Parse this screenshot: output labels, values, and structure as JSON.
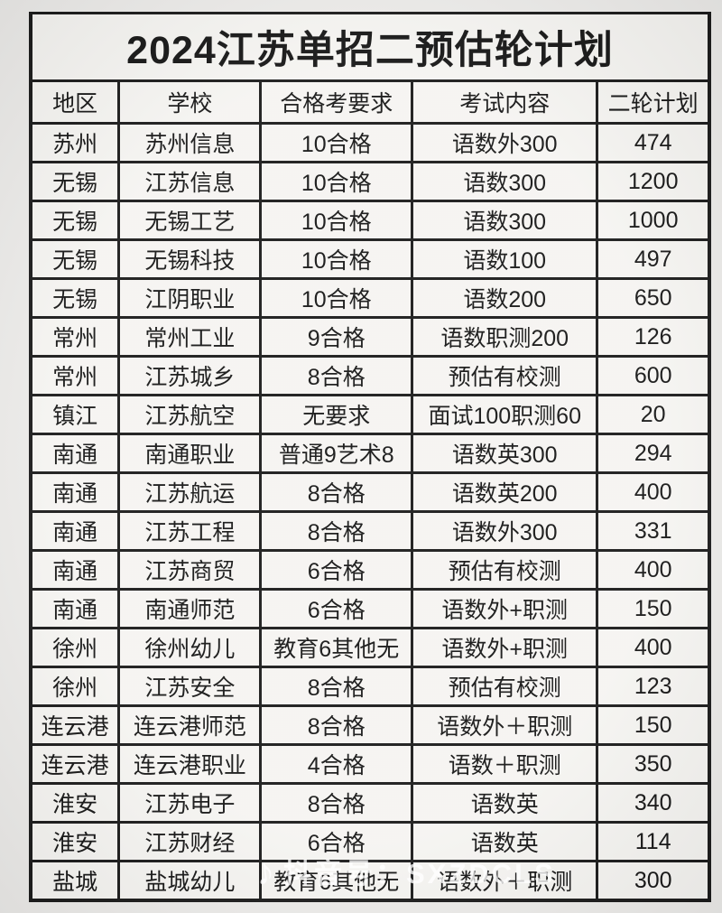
{
  "title": "2024江苏单招二预估轮计划",
  "table": {
    "headers": [
      "地区",
      "学校",
      "合格考要求",
      "考试内容",
      "二轮计划"
    ],
    "rows": [
      [
        "苏州",
        "苏州信息",
        "10合格",
        "语数外300",
        "474"
      ],
      [
        "无锡",
        "江苏信息",
        "10合格",
        "语数300",
        "1200"
      ],
      [
        "无锡",
        "无锡工艺",
        "10合格",
        "语数300",
        "1000"
      ],
      [
        "无锡",
        "无锡科技",
        "10合格",
        "语数100",
        "497"
      ],
      [
        "无锡",
        "江阴职业",
        "10合格",
        "语数200",
        "650"
      ],
      [
        "常州",
        "常州工业",
        "9合格",
        "语数职测200",
        "126"
      ],
      [
        "常州",
        "江苏城乡",
        "8合格",
        "预估有校测",
        "600"
      ],
      [
        "镇江",
        "江苏航空",
        "无要求",
        "面试100职测60",
        "20"
      ],
      [
        "南通",
        "南通职业",
        "普通9艺术8",
        "语数英300",
        "294"
      ],
      [
        "南通",
        "江苏航运",
        "8合格",
        "语数英200",
        "400"
      ],
      [
        "南通",
        "江苏工程",
        "8合格",
        "语数外300",
        "331"
      ],
      [
        "南通",
        "江苏商贸",
        "6合格",
        "预估有校测",
        "400"
      ],
      [
        "南通",
        "南通师范",
        "6合格",
        "语数外+职测",
        "150"
      ],
      [
        "徐州",
        "徐州幼儿",
        "教育6其他无",
        "语数外+职测",
        "400"
      ],
      [
        "徐州",
        "江苏安全",
        "8合格",
        "预估有校测",
        "123"
      ],
      [
        "连云港",
        "连云港师范",
        "8合格",
        "语数外＋职测",
        "150"
      ],
      [
        "连云港",
        "连云港职业",
        "4合格",
        "语数＋职测",
        "350"
      ],
      [
        "淮安",
        "江苏电子",
        "8合格",
        "语数英",
        "340"
      ],
      [
        "淮安",
        "江苏财经",
        "6合格",
        "语数英",
        "114"
      ],
      [
        "盐城",
        "盐城幼儿",
        "教育6其他无",
        "语数外＋职测",
        "300"
      ]
    ],
    "column_widths_pct": [
      13,
      20.9,
      22.3,
      27.3,
      16.5
    ]
  },
  "watermark": {
    "icon": "douyin-note",
    "text": "抖音号：SXZDCLS"
  },
  "colors": {
    "border": "#1b1b1b",
    "text": "#161616",
    "page_background": "#ecebe9",
    "cell_background": "#f5f4f1",
    "watermark": "rgba(255,255,255,0.78)"
  }
}
